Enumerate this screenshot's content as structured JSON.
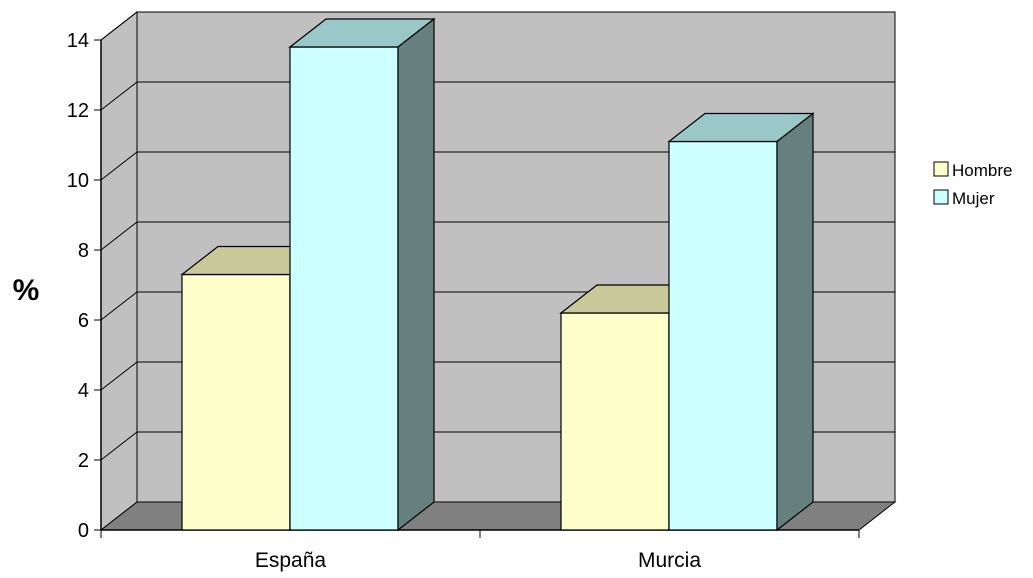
{
  "chart_data": {
    "type": "bar",
    "title": "",
    "xlabel": "",
    "ylabel": "%",
    "categories": [
      "España",
      "Murcia"
    ],
    "series": [
      {
        "name": "Hombre",
        "values": [
          7.3,
          6.2
        ]
      },
      {
        "name": "Mujer",
        "values": [
          13.8,
          11.1
        ]
      }
    ],
    "ylim": [
      0,
      14
    ],
    "yticks": [
      "0",
      "2",
      "4",
      "6",
      "8",
      "10",
      "12",
      "14"
    ],
    "grid": true,
    "legend_position": "right",
    "colors": {
      "Hombre": {
        "front": "#ffffcc",
        "top": "#c8c89a",
        "side": "#8c8c68"
      },
      "Mujer": {
        "front": "#ccffff",
        "top": "#9ac8c8",
        "side": "#668080"
      },
      "wall_back": "#c0c0c0",
      "wall_side": "#c0c0c0",
      "floor": "#808080"
    }
  }
}
